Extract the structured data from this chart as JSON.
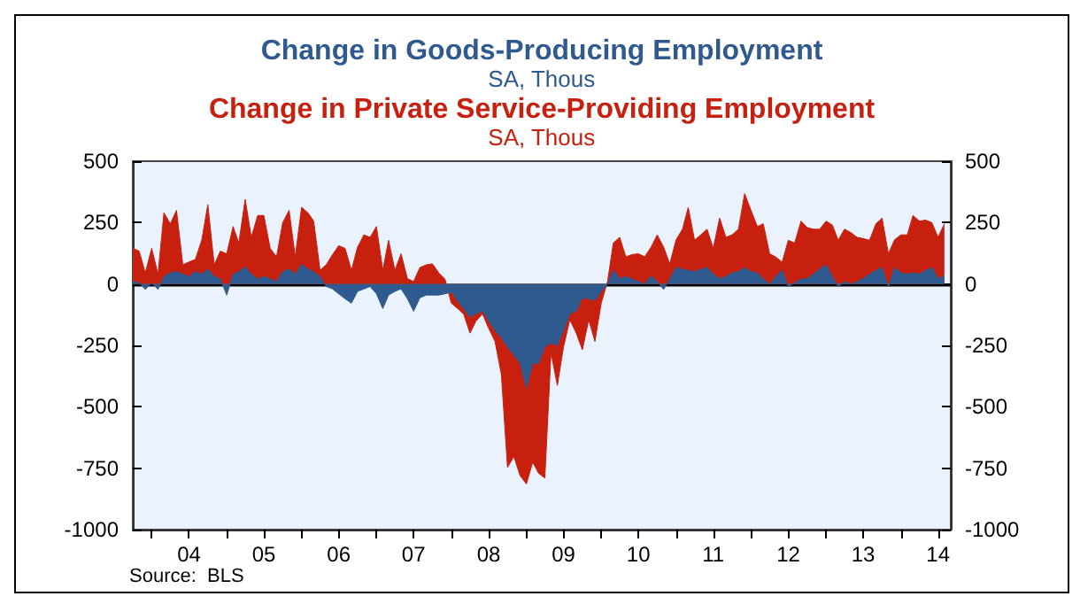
{
  "chart_data": {
    "type": "area",
    "stacked": true,
    "subtitle": "SA, Thous",
    "legend": "top",
    "x": [
      "2003-10",
      "2003-11",
      "2003-12",
      "2004-01",
      "2004-02",
      "2004-03",
      "2004-04",
      "2004-05",
      "2004-06",
      "2004-07",
      "2004-08",
      "2004-09",
      "2004-10",
      "2004-11",
      "2004-12",
      "2005-01",
      "2005-02",
      "2005-03",
      "2005-04",
      "2005-05",
      "2005-06",
      "2005-07",
      "2005-08",
      "2005-09",
      "2005-10",
      "2005-11",
      "2005-12",
      "2006-01",
      "2006-02",
      "2006-03",
      "2006-04",
      "2006-05",
      "2006-06",
      "2006-07",
      "2006-08",
      "2006-09",
      "2006-10",
      "2006-11",
      "2006-12",
      "2007-01",
      "2007-02",
      "2007-03",
      "2007-04",
      "2007-05",
      "2007-06",
      "2007-07",
      "2007-08",
      "2007-09",
      "2007-10",
      "2007-11",
      "2007-12",
      "2008-01",
      "2008-02",
      "2008-03",
      "2008-04",
      "2008-05",
      "2008-06",
      "2008-07",
      "2008-08",
      "2008-09",
      "2008-10",
      "2008-11",
      "2008-12",
      "2009-01",
      "2009-02",
      "2009-03",
      "2009-04",
      "2009-05",
      "2009-06",
      "2009-07",
      "2009-08",
      "2009-09",
      "2009-10",
      "2009-11",
      "2009-12",
      "2010-01",
      "2010-02",
      "2010-03",
      "2010-04",
      "2010-05",
      "2010-06",
      "2010-07",
      "2010-08",
      "2010-09",
      "2010-10",
      "2010-11",
      "2010-12",
      "2011-01",
      "2011-02",
      "2011-03",
      "2011-04",
      "2011-05",
      "2011-06",
      "2011-07",
      "2011-08",
      "2011-09",
      "2011-10",
      "2011-11",
      "2011-12",
      "2012-01",
      "2012-02",
      "2012-03",
      "2012-04",
      "2012-05",
      "2012-06",
      "2012-07",
      "2012-08",
      "2012-09",
      "2012-10",
      "2012-11",
      "2012-12",
      "2013-01",
      "2013-02",
      "2013-03",
      "2013-04",
      "2013-05",
      "2013-06",
      "2013-07",
      "2013-08",
      "2013-09",
      "2013-10",
      "2013-11",
      "2013-12",
      "2014-01",
      "2014-02",
      "2014-03",
      "2014-04",
      "2014-05",
      "2014-06",
      "2014-07",
      "2014-08"
    ],
    "series": [
      {
        "name": "Change in Goods-Producing Employment",
        "color": "#2f5a8f",
        "values": [
          10,
          5,
          -22,
          5,
          -22,
          30,
          45,
          50,
          40,
          30,
          50,
          40,
          60,
          30,
          20,
          -45,
          40,
          50,
          70,
          40,
          20,
          30,
          20,
          10,
          50,
          60,
          40,
          80,
          60,
          50,
          30,
          -10,
          -20,
          -40,
          -60,
          -78,
          -30,
          -20,
          -10,
          -40,
          -100,
          -45,
          -30,
          -20,
          -60,
          -111,
          -56,
          -45,
          -45,
          -45,
          -40,
          -33,
          -70,
          -100,
          -134,
          -120,
          -111,
          -150,
          -190,
          -220,
          -256,
          -290,
          -323,
          -424,
          -323,
          -323,
          -256,
          -240,
          -250,
          -190,
          -120,
          -110,
          -56,
          -60,
          -67,
          -30,
          0,
          56,
          22,
          30,
          20,
          10,
          0,
          33,
          10,
          -22,
          20,
          67,
          60,
          56,
          50,
          60,
          67,
          40,
          22,
          30,
          45,
          50,
          67,
          50,
          45,
          20,
          0,
          30,
          56,
          -11,
          5,
          20,
          22,
          40,
          60,
          78,
          30,
          -11,
          10,
          0,
          10,
          22,
          40,
          55,
          67,
          -11,
          67,
          45,
          40,
          45,
          40,
          55,
          67,
          22,
          33
        ]
      },
      {
        "name": "Change in Private Service-Providing Employment",
        "color": "#c8200e",
        "values": [
          135,
          129,
          67,
          140,
          62,
          260,
          200,
          250,
          38,
          60,
          50,
          138,
          263,
          48,
          114,
          168,
          194,
          117,
          275,
          150,
          259,
          249,
          125,
          101,
          200,
          240,
          71,
          232,
          230,
          206,
          26,
          88,
          140,
          196,
          205,
          134,
          180,
          220,
          200,
          274,
          156,
          223,
          86,
          143,
          82,
          121,
          123,
          123,
          127,
          90,
          60,
          -45,
          -30,
          -22,
          -66,
          -30,
          -11,
          -30,
          -44,
          -148,
          -491,
          -412,
          -457,
          -390,
          -402,
          -447,
          -534,
          -39,
          -163,
          -66,
          -25,
          -90,
          -212,
          -85,
          -167,
          -48,
          11,
          111,
          168,
          81,
          100,
          113,
          111,
          117,
          190,
          172,
          62,
          113,
          163,
          256,
          128,
          140,
          156,
          105,
          246,
          160,
          155,
          173,
          301,
          250,
          189,
          225,
          123,
          80,
          33,
          189,
          162,
          236,
          208,
          183,
          163,
          178,
          210,
          189,
          213,
          210,
          180,
          163,
          138,
          190,
          201,
          134,
          113,
          155,
          160,
          234,
          216,
          205,
          183,
          168,
          212
        ]
      }
    ],
    "xlim": [
      "2003-10",
      "2014-09"
    ],
    "xticks": [
      {
        "value": "2004-01",
        "label": null
      },
      {
        "value": "2004-07",
        "label": "04"
      },
      {
        "value": "2005-01",
        "label": null
      },
      {
        "value": "2005-07",
        "label": "05"
      },
      {
        "value": "2006-01",
        "label": null
      },
      {
        "value": "2006-07",
        "label": "06"
      },
      {
        "value": "2007-01",
        "label": null
      },
      {
        "value": "2007-07",
        "label": "07"
      },
      {
        "value": "2008-01",
        "label": null
      },
      {
        "value": "2008-07",
        "label": "08"
      },
      {
        "value": "2009-01",
        "label": null
      },
      {
        "value": "2009-07",
        "label": "09"
      },
      {
        "value": "2010-01",
        "label": null
      },
      {
        "value": "2010-07",
        "label": "10"
      },
      {
        "value": "2011-01",
        "label": null
      },
      {
        "value": "2011-07",
        "label": "11"
      },
      {
        "value": "2012-01",
        "label": null
      },
      {
        "value": "2012-07",
        "label": "12"
      },
      {
        "value": "2013-01",
        "label": null
      },
      {
        "value": "2013-07",
        "label": "13"
      },
      {
        "value": "2014-01",
        "label": null
      },
      {
        "value": "2014-07",
        "label": "14"
      }
    ],
    "ylim": [
      -1000,
      500
    ],
    "yticks": [
      -1000,
      -750,
      -500,
      -250,
      0,
      250,
      500
    ],
    "y2lim": [
      -1000,
      500
    ],
    "y2ticks": [
      -1000,
      -750,
      -500,
      -250,
      0,
      250,
      500
    ],
    "ref_lines": [
      {
        "axis": "y",
        "value": 0,
        "color": "#000000"
      }
    ],
    "annotations": [
      "Source:  BLS"
    ]
  }
}
